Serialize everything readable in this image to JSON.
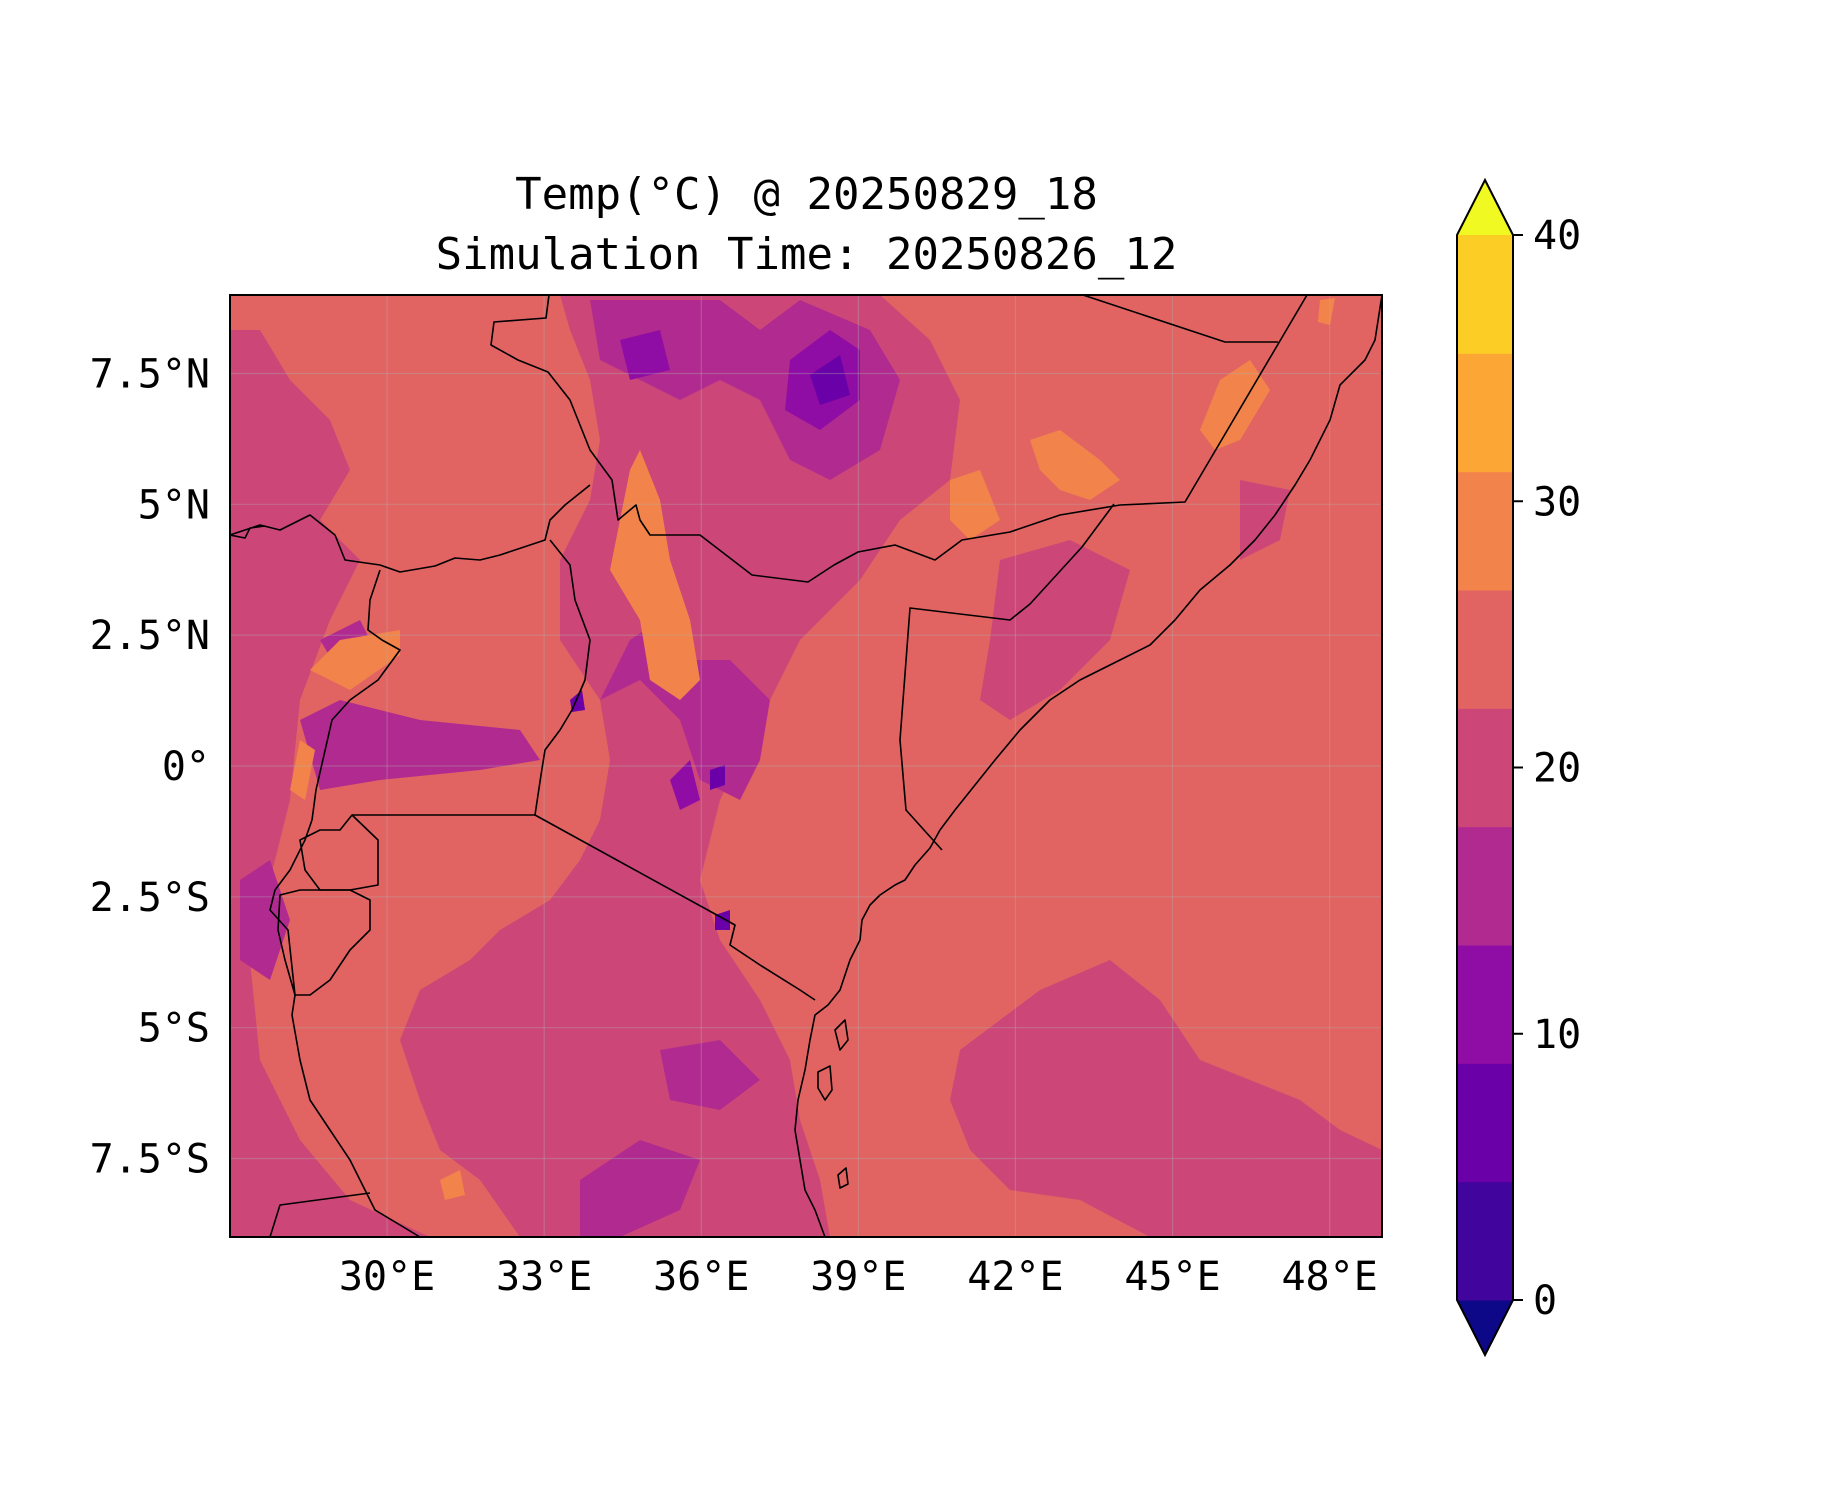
{
  "title": {
    "line1": "Temp(°C) @ 20250829_18",
    "line2": "Simulation Time: 20250826_12"
  },
  "map": {
    "lon_range": [
      27.0,
      49.0
    ],
    "lat_range": [
      -9.0,
      9.0
    ],
    "x_ticks": [
      {
        "value": 30,
        "label": "30°E"
      },
      {
        "value": 33,
        "label": "33°E"
      },
      {
        "value": 36,
        "label": "36°E"
      },
      {
        "value": 39,
        "label": "39°E"
      },
      {
        "value": 42,
        "label": "42°E"
      },
      {
        "value": 45,
        "label": "45°E"
      },
      {
        "value": 48,
        "label": "48°E"
      }
    ],
    "y_ticks": [
      {
        "value": 7.5,
        "label": "7.5°N"
      },
      {
        "value": 5,
        "label": "5°N"
      },
      {
        "value": 2.5,
        "label": "2.5°N"
      },
      {
        "value": 0,
        "label": "0°"
      },
      {
        "value": -2.5,
        "label": "2.5°S"
      },
      {
        "value": -5,
        "label": "5°S"
      },
      {
        "value": -7.5,
        "label": "7.5°S"
      }
    ],
    "gridlines": true,
    "field": "temperature",
    "units": "°C"
  },
  "colorbar": {
    "levels": [
      -5,
      0,
      5,
      10,
      15,
      20,
      25,
      30,
      35,
      40,
      45
    ],
    "colors": [
      "#0d0887",
      "#41049d",
      "#6a00a8",
      "#8f0da4",
      "#b12a90",
      "#cc4778",
      "#e16462",
      "#f2844b",
      "#fca636",
      "#fcce25",
      "#f0f921"
    ],
    "extend": "both",
    "ticks": [
      {
        "value": 0,
        "label": "0"
      },
      {
        "value": 10,
        "label": "10"
      },
      {
        "value": 20,
        "label": "20"
      },
      {
        "value": 30,
        "label": "30"
      },
      {
        "value": 40,
        "label": "40"
      }
    ]
  }
}
